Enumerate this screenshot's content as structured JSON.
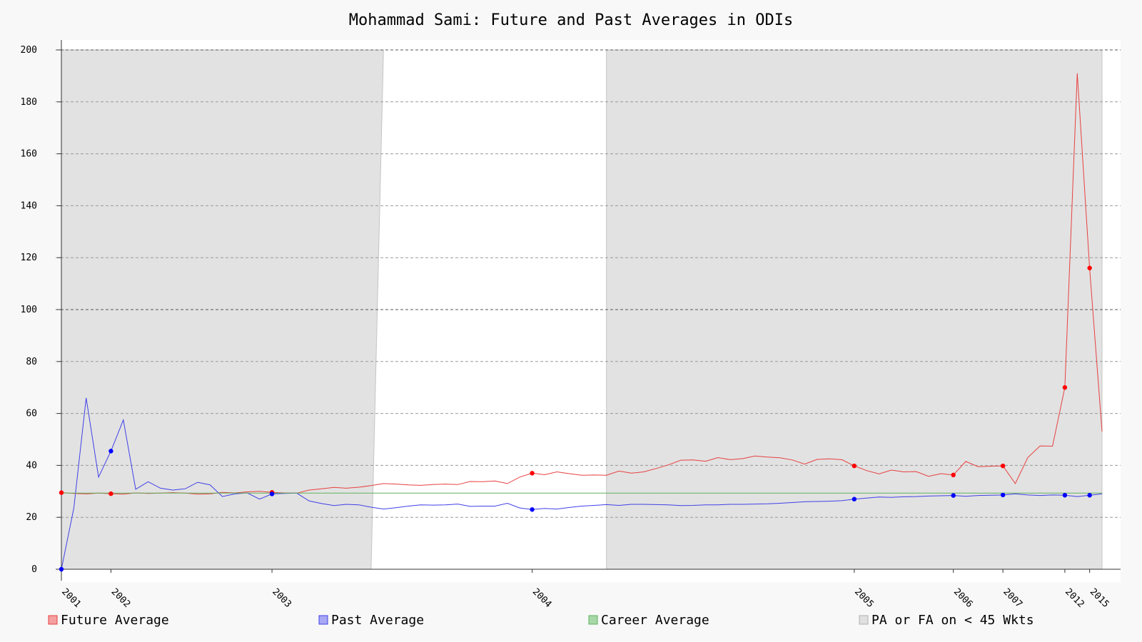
{
  "chart_data": {
    "type": "line",
    "title": "Mohammad Sami: Future and Past Averages in ODIs",
    "xlabel": "",
    "ylabel": "",
    "ylim": [
      0,
      200
    ],
    "y_ticks": [
      0,
      20,
      40,
      60,
      80,
      100,
      120,
      140,
      160,
      180,
      200
    ],
    "x_range": [
      0,
      84
    ],
    "x_ticks": [
      {
        "x": 0,
        "label": "2001"
      },
      {
        "x": 4,
        "label": "2002"
      },
      {
        "x": 17,
        "label": "2003"
      },
      {
        "x": 38,
        "label": "2004"
      },
      {
        "x": 64,
        "label": "2005"
      },
      {
        "x": 72,
        "label": "2006"
      },
      {
        "x": 76,
        "label": "2007"
      },
      {
        "x": 81,
        "label": "2012"
      },
      {
        "x": 83,
        "label": "2015"
      }
    ],
    "grid": "horizontal dashed",
    "legend_placement": "bottom",
    "series": [
      {
        "name": "Future Average",
        "color": "#e84040",
        "values": [
          29.5,
          29.2,
          29.0,
          29.3,
          29.1,
          28.9,
          29.4,
          29.2,
          29.3,
          29.5,
          29.3,
          28.9,
          29.0,
          29.6,
          29.4,
          29.8,
          30.0,
          29.6,
          29.4,
          29.3,
          30.5,
          31.0,
          31.5,
          31.2,
          31.6,
          32.2,
          33.0,
          32.8,
          32.5,
          32.3,
          32.6,
          32.8,
          32.6,
          33.8,
          33.7,
          34.0,
          33.0,
          35.5,
          37.0,
          36.4,
          37.5,
          36.8,
          36.2,
          36.3,
          36.2,
          37.8,
          37.0,
          37.5,
          38.8,
          40.2,
          42.0,
          42.1,
          41.6,
          43.0,
          42.2,
          42.6,
          43.6,
          43.2,
          42.9,
          42.1,
          40.5,
          42.3,
          42.5,
          42.2,
          39.8,
          38.0,
          36.7,
          38.2,
          37.5,
          37.6,
          35.8,
          36.8,
          36.3,
          41.5,
          39.5,
          39.7,
          39.8,
          33.0,
          43.0,
          47.5,
          47.4,
          70.0,
          191.0,
          116.0,
          53.0
        ],
        "markers": [
          {
            "x": 0,
            "y": 29.5
          },
          {
            "x": 4,
            "y": 29.1
          },
          {
            "x": 17,
            "y": 29.6
          },
          {
            "x": 38,
            "y": 37.0
          },
          {
            "x": 64,
            "y": 39.8
          },
          {
            "x": 72,
            "y": 36.3
          },
          {
            "x": 76,
            "y": 39.8
          },
          {
            "x": 81,
            "y": 70.0
          },
          {
            "x": 83,
            "y": 116.0
          }
        ]
      },
      {
        "name": "Past Average",
        "color": "#4040e8",
        "values": [
          0.0,
          23.5,
          66.0,
          35.5,
          45.5,
          57.5,
          30.8,
          33.7,
          31.2,
          30.5,
          31.0,
          33.5,
          32.5,
          28.0,
          29.0,
          29.4,
          27.0,
          29.0,
          29.2,
          29.3,
          26.3,
          25.3,
          24.5,
          25.0,
          24.8,
          23.9,
          23.2,
          23.7,
          24.3,
          24.8,
          24.7,
          24.8,
          25.1,
          24.2,
          24.3,
          24.3,
          25.4,
          23.6,
          23.0,
          23.4,
          23.2,
          23.8,
          24.3,
          24.6,
          24.9,
          24.6,
          25.0,
          25.0,
          24.9,
          24.8,
          24.5,
          24.6,
          24.8,
          24.8,
          25.0,
          25.0,
          25.1,
          25.2,
          25.4,
          25.7,
          26.0,
          26.1,
          26.2,
          26.4,
          27.0,
          27.4,
          27.8,
          27.7,
          27.9,
          28.0,
          28.2,
          28.3,
          28.4,
          28.1,
          28.4,
          28.5,
          28.6,
          29.0,
          28.6,
          28.4,
          28.6,
          28.5,
          28.0,
          28.5,
          29.0
        ],
        "markers": [
          {
            "x": 0,
            "y": 0.0
          },
          {
            "x": 4,
            "y": 45.5
          },
          {
            "x": 17,
            "y": 29.0
          },
          {
            "x": 38,
            "y": 23.0
          },
          {
            "x": 64,
            "y": 27.0
          },
          {
            "x": 72,
            "y": 28.4
          },
          {
            "x": 76,
            "y": 28.6
          },
          {
            "x": 81,
            "y": 28.5
          },
          {
            "x": 83,
            "y": 28.5
          }
        ]
      },
      {
        "name": "Career Average",
        "color": "#60b060",
        "values": [
          29.3,
          29.3
        ]
      }
    ],
    "shaded_regions": [
      {
        "name": "PA or FA on < 45 Wkts",
        "color": "#e2e2e2",
        "polygons": [
          [
            [
              0,
              0
            ],
            [
              0,
              200
            ],
            [
              26,
              200
            ],
            [
              25,
              0
            ]
          ],
          [
            [
              44,
              0
            ],
            [
              44,
              200
            ],
            [
              84,
              200
            ],
            [
              84,
              0
            ]
          ]
        ]
      }
    ]
  }
}
